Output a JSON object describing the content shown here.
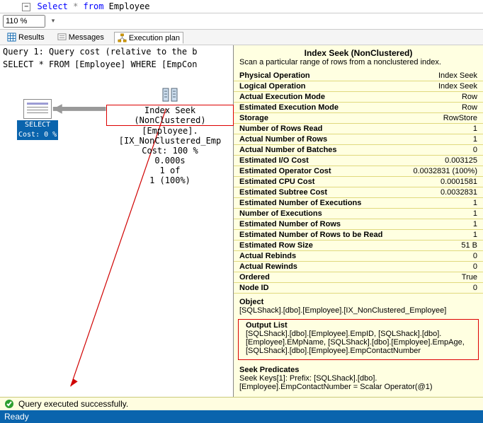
{
  "sql": {
    "keyword_select": "Select",
    "star": "*",
    "keyword_from": "from",
    "table": "Employee"
  },
  "zoom": {
    "value": "110 %"
  },
  "tabs": {
    "results": "Results",
    "messages": "Messages",
    "plan": "Execution plan"
  },
  "query_header": {
    "line1": "Query 1: Query cost (relative to the b",
    "line2": "SELECT * FROM [Employee] WHERE [EmpCon"
  },
  "plan": {
    "select_label": "SELECT",
    "select_cost": "Cost: 0 %",
    "seek_title": "Index Seek (NonClustered)",
    "seek_obj": "[Employee].[IX_NonClustered_Emp",
    "seek_cost": "Cost: 100 %",
    "seek_time": "0.000s",
    "seek_rows1": "1 of",
    "seek_rows2": "1 (100%)",
    "line_color": "#d00000"
  },
  "tooltip": {
    "title": "Index Seek (NonClustered)",
    "subtitle": "Scan a particular range of rows from a nonclustered index.",
    "rows": [
      [
        "Physical Operation",
        "Index Seek"
      ],
      [
        "Logical Operation",
        "Index Seek"
      ],
      [
        "Actual Execution Mode",
        "Row"
      ],
      [
        "Estimated Execution Mode",
        "Row"
      ],
      [
        "Storage",
        "RowStore"
      ],
      [
        "Number of Rows Read",
        "1"
      ],
      [
        "Actual Number of Rows",
        "1"
      ],
      [
        "Actual Number of Batches",
        "0"
      ],
      [
        "Estimated I/O Cost",
        "0.003125"
      ],
      [
        "Estimated Operator Cost",
        "0.0032831 (100%)"
      ],
      [
        "Estimated CPU Cost",
        "0.0001581"
      ],
      [
        "Estimated Subtree Cost",
        "0.0032831"
      ],
      [
        "Estimated Number of Executions",
        "1"
      ],
      [
        "Number of Executions",
        "1"
      ],
      [
        "Estimated Number of Rows",
        "1"
      ],
      [
        "Estimated Number of Rows to be Read",
        "1"
      ],
      [
        "Estimated Row Size",
        "51 B"
      ],
      [
        "Actual Rebinds",
        "0"
      ],
      [
        "Actual Rewinds",
        "0"
      ],
      [
        "Ordered",
        "True"
      ],
      [
        "Node ID",
        "0"
      ]
    ],
    "object_label": "Object",
    "object_value": "[SQLShack].[dbo].[Employee].[IX_NonClustered_Employee]",
    "output_label": "Output List",
    "output_value": "[SQLShack].[dbo].[Employee].EmpID, [SQLShack].[dbo].[Employee].EMpName, [SQLShack].[dbo].[Employee].EmpAge, [SQLShack].[dbo].[Employee].EmpContactNumber",
    "seekpred_label": "Seek Predicates",
    "seekpred_value": "Seek Keys[1]: Prefix: [SQLShack].[dbo].[Employee].EmpContactNumber = Scalar Operator(@1)"
  },
  "status": {
    "msg": "Query executed successfully."
  },
  "ready": {
    "label": "Ready"
  },
  "colors": {
    "tooltip_bg": "#ffffe1",
    "rule": "#e0d97e",
    "red": "#d00000",
    "blue": "#0a64ad"
  }
}
